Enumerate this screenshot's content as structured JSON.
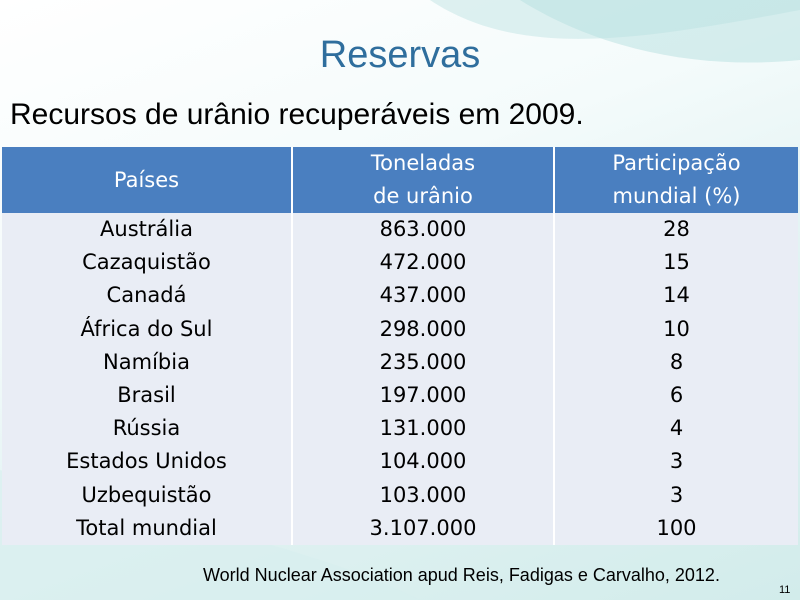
{
  "slide": {
    "title": "Reservas",
    "subtitle": "Recursos de urânio recuperáveis em 2009.",
    "source": "World Nuclear Association apud Reis, Fadigas e Carvalho, 2012.",
    "slide_number": "11"
  },
  "table": {
    "headers": {
      "country": "Países",
      "tonnes_line1": "Toneladas",
      "tonnes_line2": "de urânio",
      "share_line1": "Participação",
      "share_line2": "mundial (%)"
    },
    "rows": [
      {
        "country": "Austrália",
        "tonnes": "863.000",
        "share": "28"
      },
      {
        "country": "Cazaquistão",
        "tonnes": "472.000",
        "share": "15"
      },
      {
        "country": "Canadá",
        "tonnes": "437.000",
        "share": "14"
      },
      {
        "country": "África do Sul",
        "tonnes": "298.000",
        "share": "10"
      },
      {
        "country": "Namíbia",
        "tonnes": "235.000",
        "share": "8"
      },
      {
        "country": "Brasil",
        "tonnes": "197.000",
        "share": "6"
      },
      {
        "country": "Rússia",
        "tonnes": "131.000",
        "share": "4"
      },
      {
        "country": "Estados Unidos",
        "tonnes": "104.000",
        "share": "3"
      },
      {
        "country": "Uzbequistão",
        "tonnes": "103.000",
        "share": "3"
      },
      {
        "country": "Total mundial",
        "tonnes": "3.107.000",
        "share": "100"
      }
    ]
  },
  "colors": {
    "title": "#2f6e9d",
    "header_bg": "#4a7fc0",
    "header_text": "#ffffff",
    "cell_bg": "#e9edf5",
    "background_accent": "#d2eceb"
  }
}
